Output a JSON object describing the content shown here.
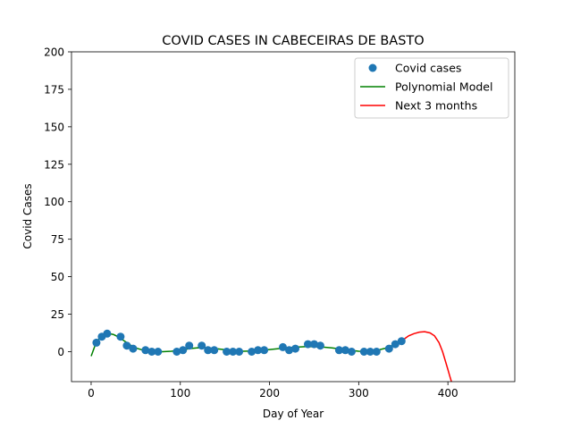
{
  "chart_data": {
    "type": "scatter",
    "title": "COVID CASES IN CABECEIRAS DE BASTO",
    "xlabel": "Day of Year",
    "ylabel": "Covid Cases",
    "xlim": [
      -22,
      475
    ],
    "ylim": [
      -20,
      200
    ],
    "x_ticks": [
      0,
      100,
      200,
      300,
      400
    ],
    "y_ticks": [
      0,
      25,
      50,
      75,
      100,
      125,
      150,
      175,
      200
    ],
    "grid": false,
    "legend_position": "top-right",
    "series": [
      {
        "name": "Covid cases",
        "kind": "scatter",
        "color": "#1f77b4",
        "points": [
          [
            6,
            6
          ],
          [
            12,
            10
          ],
          [
            18,
            12
          ],
          [
            33,
            10
          ],
          [
            40,
            4
          ],
          [
            47,
            2
          ],
          [
            61,
            1
          ],
          [
            68,
            0
          ],
          [
            75,
            0
          ],
          [
            96,
            0
          ],
          [
            103,
            1
          ],
          [
            110,
            4
          ],
          [
            124,
            4
          ],
          [
            131,
            1
          ],
          [
            138,
            1
          ],
          [
            152,
            0
          ],
          [
            159,
            0
          ],
          [
            166,
            0
          ],
          [
            180,
            0
          ],
          [
            187,
            1
          ],
          [
            194,
            1
          ],
          [
            215,
            3
          ],
          [
            222,
            1
          ],
          [
            229,
            2
          ],
          [
            243,
            5
          ],
          [
            250,
            5
          ],
          [
            257,
            4
          ],
          [
            278,
            1
          ],
          [
            285,
            1
          ],
          [
            292,
            0
          ],
          [
            306,
            0
          ],
          [
            313,
            0
          ],
          [
            320,
            0
          ],
          [
            334,
            2
          ],
          [
            341,
            5
          ],
          [
            348,
            7
          ]
        ]
      },
      {
        "name": "Polynomial Model",
        "kind": "line",
        "color": "#008000",
        "points": [
          [
            0,
            -3
          ],
          [
            5,
            5
          ],
          [
            10,
            9.5
          ],
          [
            15,
            11.5
          ],
          [
            20,
            12
          ],
          [
            25,
            11.5
          ],
          [
            30,
            10
          ],
          [
            35,
            8
          ],
          [
            40,
            6
          ],
          [
            45,
            4
          ],
          [
            50,
            2.5
          ],
          [
            60,
            0.7
          ],
          [
            70,
            0
          ],
          [
            80,
            0
          ],
          [
            90,
            0.3
          ],
          [
            100,
            1
          ],
          [
            110,
            2
          ],
          [
            120,
            2.6
          ],
          [
            130,
            2.5
          ],
          [
            140,
            2
          ],
          [
            150,
            1.3
          ],
          [
            160,
            0.6
          ],
          [
            170,
            0.3
          ],
          [
            180,
            0.4
          ],
          [
            190,
            0.8
          ],
          [
            200,
            1.4
          ],
          [
            210,
            2
          ],
          [
            220,
            2.6
          ],
          [
            230,
            3
          ],
          [
            240,
            3.3
          ],
          [
            250,
            3.3
          ],
          [
            260,
            3
          ],
          [
            270,
            2.5
          ],
          [
            280,
            1.7
          ],
          [
            290,
            0.9
          ],
          [
            300,
            0.3
          ],
          [
            310,
            0.2
          ],
          [
            320,
            0.8
          ],
          [
            330,
            2.3
          ],
          [
            340,
            4.7
          ],
          [
            350,
            8
          ]
        ]
      },
      {
        "name": "Next 3 months",
        "kind": "line",
        "color": "#ff0000",
        "points": [
          [
            350,
            8
          ],
          [
            356,
            10.5
          ],
          [
            362,
            12
          ],
          [
            368,
            13
          ],
          [
            374,
            13.3
          ],
          [
            380,
            12.5
          ],
          [
            385,
            10.5
          ],
          [
            390,
            6
          ],
          [
            394,
            0
          ],
          [
            397,
            -6
          ],
          [
            400,
            -12
          ],
          [
            402,
            -16
          ],
          [
            404,
            -20
          ],
          [
            405,
            -22
          ]
        ]
      }
    ]
  }
}
